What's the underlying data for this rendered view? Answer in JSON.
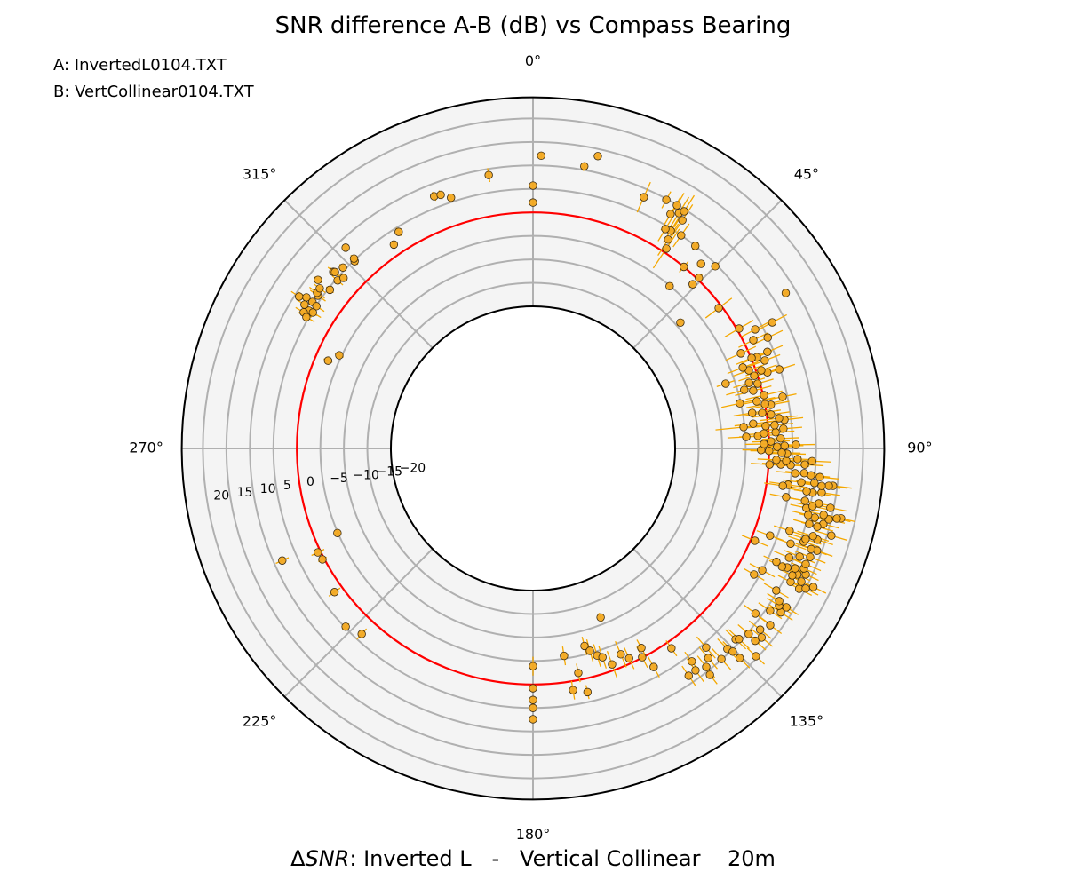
{
  "chart_data": {
    "type": "scatter",
    "projection": "polar",
    "title": "SNR difference A-B (dB) vs Compass Bearing",
    "annotations": [
      "A: InvertedL0104.TXT",
      "B: VertCollinear0104.TXT"
    ],
    "xlabel": {
      "prefix": "Δ",
      "italic": "SNR",
      "rest": ": Inverted L   -   Vertical Collinear    20m"
    },
    "theta_direction": "clockwise",
    "theta_zero": "north",
    "theta_ticks": [
      "0°",
      "45°",
      "90°",
      "135°",
      "180°",
      "225°",
      "270°",
      "315°"
    ],
    "r_ticks": [
      "−20",
      "−15",
      "−10",
      "−5",
      "0",
      "5",
      "10",
      "15",
      "20"
    ],
    "r_tick_values": [
      -20,
      -15,
      -10,
      -5,
      0,
      5,
      10,
      15,
      20
    ],
    "rlim": [
      -20,
      24.5
    ],
    "reference_circle_db": 0,
    "grid": true,
    "colors": {
      "marker": "#f2a922",
      "errorbar": "#f5a800",
      "reference": "#ff0000",
      "grid": "#b0b0b0",
      "background": "#f4f4f4"
    },
    "point_format": [
      "bearing_deg",
      "snr_diff_db",
      "error_db"
    ],
    "points": [
      [
        1.6,
        12.1,
        0.8
      ],
      [
        10.3,
        10.8,
        1
      ],
      [
        12.5,
        13.5,
        0.5
      ],
      [
        0,
        5.7,
        0.5
      ],
      [
        0,
        2.1,
        0.5
      ],
      [
        350.8,
        8.7,
        1.5
      ],
      [
        338.6,
        7.4,
        1
      ],
      [
        340,
        7.2,
        1
      ],
      [
        341.9,
        5.9,
        0.5
      ],
      [
        328.2,
        4.0,
        1
      ],
      [
        325.7,
        2.3,
        0.5
      ],
      [
        317.0,
        8.2,
        0.5
      ],
      [
        316.4,
        4.8,
        1
      ],
      [
        316.7,
        5.3,
        1
      ],
      [
        313.6,
        5.6,
        1
      ],
      [
        311.5,
        6.5,
        1.5
      ],
      [
        311.7,
        6.2,
        1.5
      ],
      [
        310.7,
        4.6,
        1.5
      ],
      [
        312.0,
        4.0,
        1
      ],
      [
        308.1,
        7.9,
        1
      ],
      [
        308.0,
        4.6,
        1
      ],
      [
        303.0,
        9.1,
        2
      ],
      [
        303.7,
        7.7,
        2
      ],
      [
        305.4,
        5.9,
        2
      ],
      [
        303.6,
        6.1,
        2
      ],
      [
        302.2,
        7.2,
        2
      ],
      [
        303.3,
        4.9,
        2
      ],
      [
        301.6,
        5.7,
        2
      ],
      [
        300.7,
        6.5,
        2
      ],
      [
        301.7,
        4.8,
        2
      ],
      [
        300.1,
        5.5,
        2
      ],
      [
        305.8,
        6.4,
        2
      ],
      [
        306.9,
        6.5,
        1.5
      ],
      [
        293.2,
        -2.8,
        1
      ],
      [
        295.7,
        -4.5,
        1
      ],
      [
        246.6,
        -4.9,
        0.5
      ],
      [
        245.9,
        8.2,
        1.5
      ],
      [
        244.2,
        0.6,
        1.5
      ],
      [
        242.2,
        0.4,
        1
      ],
      [
        234.1,
        1.9,
        1.5
      ],
      [
        226.4,
        4.8,
        1
      ],
      [
        222.7,
        3.5,
        1.5
      ],
      [
        180,
        -3.9,
        2
      ],
      [
        180,
        0.8,
        0.5
      ],
      [
        180,
        3.3,
        0.5
      ],
      [
        180,
        5.0,
        0.5
      ],
      [
        180,
        7.4,
        0.5
      ],
      [
        158.2,
        -11.5,
        1
      ],
      [
        171.5,
        -5.6,
        2
      ],
      [
        170.6,
        1.9,
        2
      ],
      [
        168.6,
        -1.5,
        2
      ],
      [
        167.4,
        2.9,
        1.5
      ],
      [
        165.4,
        -6.8,
        2
      ],
      [
        164.3,
        -5.5,
        2.5
      ],
      [
        162.8,
        -4.1,
        2.5
      ],
      [
        161.6,
        -3.4,
        2.5
      ],
      [
        159.9,
        -1.3,
        3
      ],
      [
        156.9,
        -2.6,
        3
      ],
      [
        155.4,
        -1.1,
        2.5
      ],
      [
        152.4,
        -0.1,
        2.5
      ],
      [
        151.5,
        -1.9,
        2
      ],
      [
        151.1,
        2.9,
        2.5
      ],
      [
        145.3,
        1.5,
        2
      ],
      [
        143.3,
        6.3,
        2.5
      ],
      [
        145.6,
        8.4,
        2.5
      ],
      [
        139.0,
        5.9,
        3
      ],
      [
        140.1,
        7.9,
        3
      ],
      [
        141.6,
        9.1,
        3
      ],
      [
        143.8,
        8.3,
        3
      ],
      [
        142.0,
        10.9,
        2.5
      ],
      [
        138.2,
        9.9,
        3
      ],
      [
        135.9,
        9.2,
        3
      ],
      [
        135.5,
        10.4,
        3
      ],
      [
        135.4,
        12.4,
        3
      ],
      [
        133.0,
        14.6,
        2.5
      ],
      [
        133.3,
        9.0,
        3
      ],
      [
        132.8,
        9.5,
        3
      ],
      [
        130.7,
        10.3,
        3
      ],
      [
        129.6,
        12.9,
        3
      ],
      [
        130.9,
        12.3,
        3
      ],
      [
        128.6,
        11.6,
        3
      ],
      [
        126.7,
        12.7,
        3
      ],
      [
        126.6,
        8.7,
        3
      ],
      [
        124.4,
        10.9,
        3
      ],
      [
        123.5,
        13.0,
        3
      ],
      [
        122.1,
        13.4,
        3
      ],
      [
        122.6,
        11.9,
        3
      ],
      [
        121.8,
        11.4,
        3
      ],
      [
        120.3,
        9.7,
        3
      ],
      [
        119.7,
        3.9,
        2.5
      ],
      [
        118.0,
        5.0,
        3
      ],
      [
        117.8,
        13.8,
        3
      ],
      [
        117.2,
        15.0,
        3
      ],
      [
        116.3,
        16.3,
        3
      ],
      [
        116.4,
        13.5,
        3
      ],
      [
        117.4,
        11.5,
        3
      ],
      [
        115.5,
        12.1,
        3
      ],
      [
        116.1,
        11.2,
        3
      ],
      [
        114.8,
        13.7,
        3
      ],
      [
        113.9,
        12.8,
        3
      ],
      [
        114.6,
        11.1,
        3
      ],
      [
        115.1,
        9.5,
        3
      ],
      [
        115.4,
        8.4,
        3
      ],
      [
        115.0,
        6.9,
        3
      ],
      [
        113.0,
        12.8,
        3.5
      ],
      [
        113.1,
        9.0,
        3.5
      ],
      [
        112.1,
        11.0,
        3.5
      ],
      [
        111.4,
        13.1,
        3.5
      ],
      [
        109.8,
        14.0,
        3.5
      ],
      [
        109.9,
        12.7,
        3.5
      ],
      [
        109.0,
        10.7,
        3.5
      ],
      [
        106.3,
        15.9,
        3.5
      ],
      [
        107.8,
        13.3,
        3.5
      ],
      [
        107.4,
        12.2,
        3.5
      ],
      [
        108.4,
        10.9,
        3.5
      ],
      [
        110.3,
        8.2,
        3.5
      ],
      [
        112.6,
        0.9,
        3
      ],
      [
        110.2,
        3.5,
        3
      ],
      [
        107.8,
        7.1,
        3.5
      ],
      [
        104.6,
        13.6,
        3.5
      ],
      [
        105.4,
        12.5,
        3.5
      ],
      [
        105.3,
        10.7,
        3.5
      ],
      [
        102.8,
        17.0,
        3
      ],
      [
        103.0,
        16.1,
        3
      ],
      [
        103.5,
        14.5,
        3.5
      ],
      [
        102.9,
        13.2,
        3.5
      ],
      [
        103.8,
        11.5,
        3.5
      ],
      [
        103.6,
        10.0,
        3.5
      ],
      [
        102.3,
        9.3,
        3.5
      ],
      [
        101.3,
        14.3,
        3.5
      ],
      [
        100.9,
        11.7,
        3.5
      ],
      [
        101.7,
        10.5,
        3.5
      ],
      [
        100.9,
        8.7,
        3.5
      ],
      [
        100.9,
        4.6,
        3.5
      ],
      [
        98.7,
        11.9,
        4
      ],
      [
        99.0,
        10.0,
        4
      ],
      [
        98.9,
        8.7,
        4
      ],
      [
        97.1,
        14.1,
        4
      ],
      [
        97.2,
        13.2,
        4
      ],
      [
        97.4,
        11.7,
        4
      ],
      [
        97.0,
        10.1,
        4
      ],
      [
        97.2,
        7.3,
        4
      ],
      [
        98.1,
        4.6,
        4
      ],
      [
        98.5,
        3.5,
        4
      ],
      [
        95.7,
        11.1,
        4
      ],
      [
        95.5,
        9.2,
        4
      ],
      [
        95.2,
        7.7,
        4
      ],
      [
        95.4,
        5.8,
        4
      ],
      [
        93.4,
        7.7,
        4
      ],
      [
        93.7,
        4.7,
        4
      ],
      [
        93.7,
        2.6,
        4
      ],
      [
        92.6,
        9.2,
        4
      ],
      [
        92.3,
        6.1,
        4
      ],
      [
        92.8,
        3.7,
        4
      ],
      [
        93.9,
        0.2,
        4
      ],
      [
        92.7,
        1.6,
        4
      ],
      [
        91.2,
        3.8,
        4
      ],
      [
        91.0,
        2.7,
        4
      ],
      [
        90.6,
        0.0,
        4
      ],
      [
        90.4,
        -1.7,
        4
      ],
      [
        89.2,
        5.7,
        4
      ],
      [
        89.4,
        3.3,
        4
      ],
      [
        89.6,
        1.7,
        4
      ],
      [
        88.9,
        -1.1,
        4
      ],
      [
        87.7,
        2.5,
        4
      ],
      [
        88.3,
        0.4,
        4
      ],
      [
        86.8,
        -2.3,
        4
      ],
      [
        86.9,
        -4.8,
        4
      ],
      [
        85.5,
        3.2,
        4
      ],
      [
        86.2,
        1.5,
        4
      ],
      [
        86.3,
        -1.0,
        4
      ],
      [
        84.2,
        -5.2,
        6
      ],
      [
        84.5,
        1.4,
        4
      ],
      [
        84.5,
        -0.5,
        4
      ],
      [
        83.6,
        -3.1,
        4
      ],
      [
        83.5,
        3.6,
        4
      ],
      [
        83.0,
        2.5,
        4
      ],
      [
        81.9,
        0.9,
        4
      ],
      [
        81.2,
        -0.9,
        4
      ],
      [
        80.8,
        -3.0,
        4
      ],
      [
        79.6,
        1.2,
        4
      ],
      [
        79.2,
        0.0,
        4
      ],
      [
        78.1,
        -1.6,
        4
      ],
      [
        77.7,
        -5.2,
        4
      ],
      [
        78.3,
        4.0,
        3
      ],
      [
        77.0,
        0.2,
        4
      ],
      [
        75.3,
        -1.8,
        4
      ],
      [
        74.5,
        -3.6,
        4
      ],
      [
        73.9,
        -0.5,
        3.5
      ],
      [
        73.1,
        -2.2,
        3.5
      ],
      [
        71.4,
        -7.0,
        2
      ],
      [
        71.8,
        -0.7,
        3.5
      ],
      [
        72.0,
        2.2,
        3.5
      ],
      [
        71.1,
        1.1,
        3.5
      ],
      [
        70.1,
        -1.4,
        3.5
      ],
      [
        68.9,
        -2.4,
        3.5
      ],
      [
        72.2,
        4.8,
        3.5
      ],
      [
        69.2,
        2.5,
        3.5
      ],
      [
        67.6,
        3.7,
        3.5
      ],
      [
        67.8,
        1.2,
        3.5
      ],
      [
        67.5,
        0.1,
        3.5
      ],
      [
        65.4,
        -1.6,
        3.5
      ],
      [
        64.7,
        5.0,
        3.5
      ],
      [
        63.8,
        2.0,
        3.5
      ],
      [
        62.2,
        7.3,
        3.5
      ],
      [
        61.8,
        3.4,
        3.5
      ],
      [
        59.8,
        0.5,
        3.5
      ],
      [
        58.4,
        12.9,
        0.5
      ],
      [
        52.9,
        -0.7,
        3.5
      ],
      [
        49.5,
        -9.0,
        1
      ],
      [
        45.0,
        4.6,
        1
      ],
      [
        44.2,
        0.4,
        1
      ],
      [
        44.2,
        -1.5,
        1
      ],
      [
        42.3,
        2.9,
        1
      ],
      [
        40.1,
        -5.1,
        1
      ],
      [
        39.7,
        0.0,
        1.5
      ],
      [
        38.7,
        5.0,
        1
      ],
      [
        33.7,
        0.9,
        5
      ],
      [
        32.9,
        2.7,
        4
      ],
      [
        34.8,
        5.0,
        3
      ],
      [
        32.3,
        4.6,
        3
      ],
      [
        31.1,
        4.3,
        3
      ],
      [
        30.4,
        7.6,
        4
      ],
      [
        31.8,
        8.7,
        4
      ],
      [
        32.5,
        9.6,
        4
      ],
      [
        33.2,
        7.8,
        4
      ],
      [
        30.6,
        9.9,
        3
      ],
      [
        28.2,
        9.8,
        2
      ],
      [
        23.8,
        8.2,
        3.5
      ]
    ]
  }
}
